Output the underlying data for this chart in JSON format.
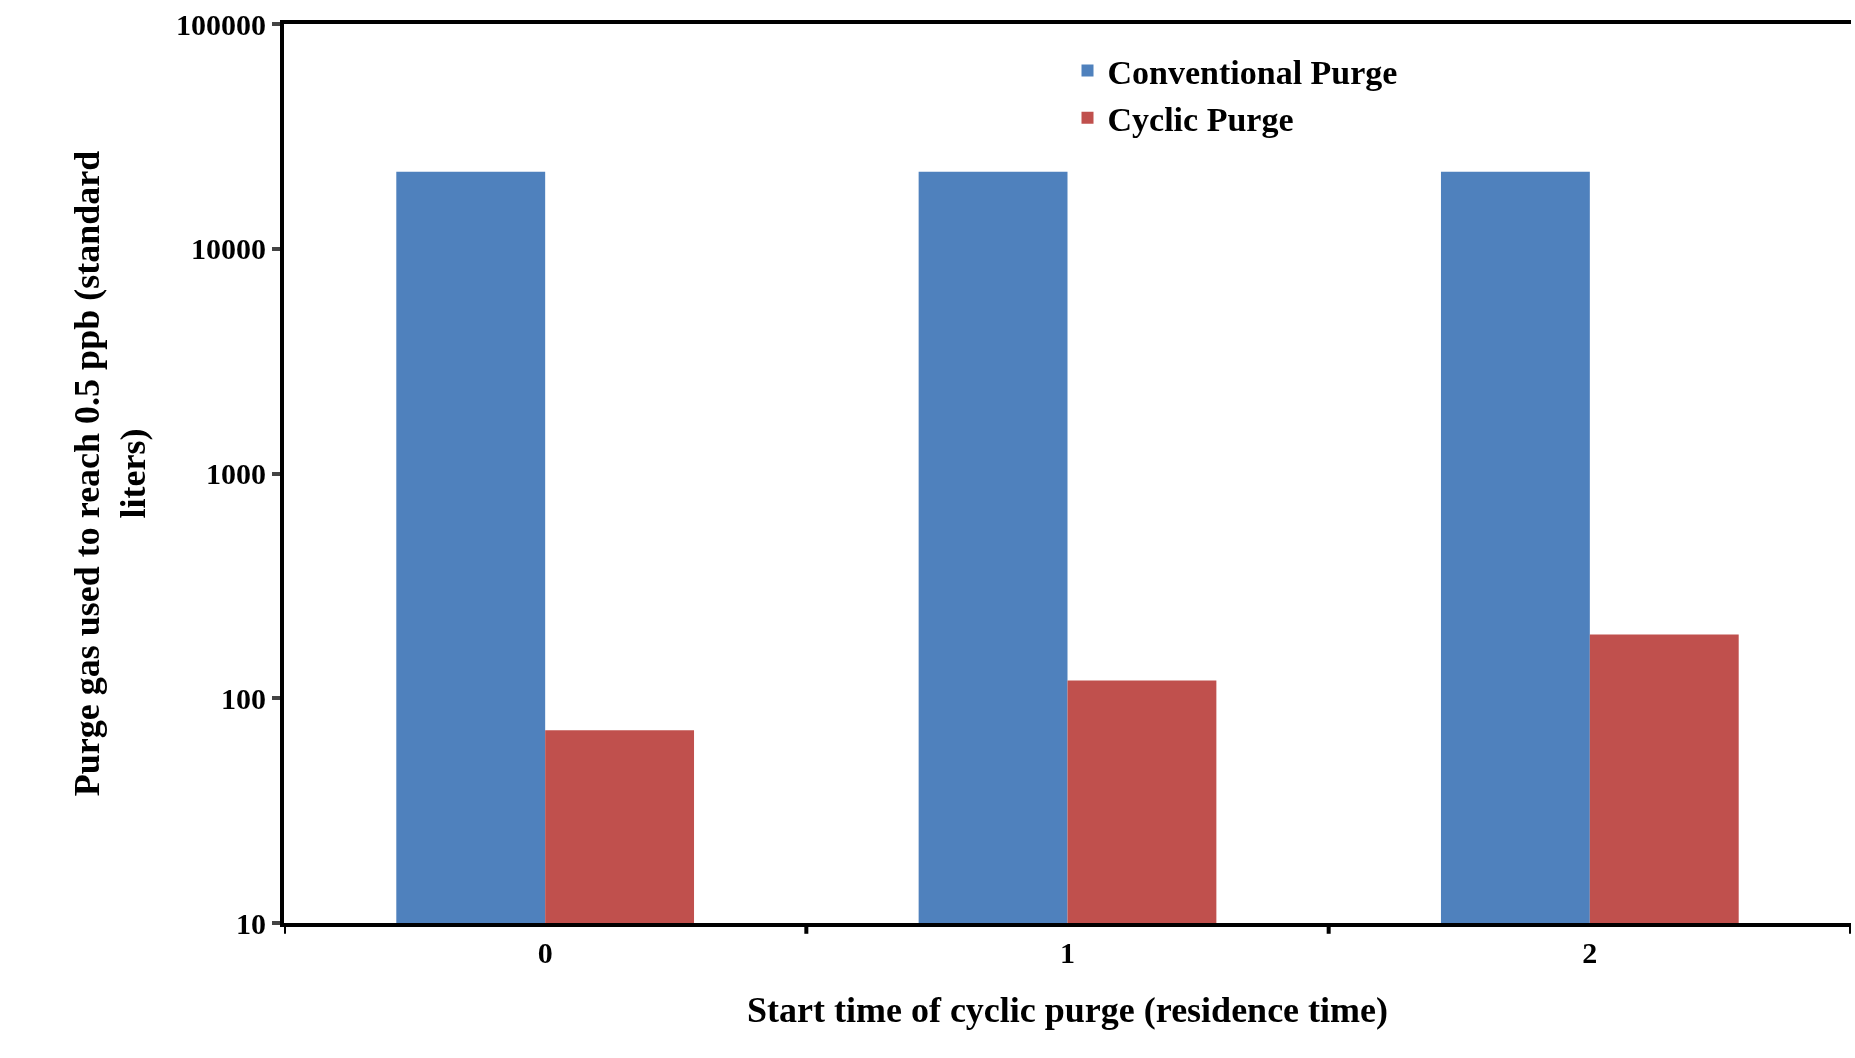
{
  "chart_data": {
    "type": "bar",
    "xlabel": "Start time of cyclic purge (residence time)",
    "ylabel": "Purge gas used to reach 0.5 ppb (standard liters)",
    "categories": [
      "0",
      "1",
      "2"
    ],
    "series": [
      {
        "name": "Conventional Purge",
        "color": "#4f81bd",
        "values": [
          22000,
          22000,
          22000
        ]
      },
      {
        "name": "Cyclic Purge",
        "color": "#c0504d",
        "values": [
          72,
          120,
          192
        ]
      }
    ],
    "log": true,
    "ylim": [
      10,
      100000
    ],
    "yticks": [
      10,
      100,
      1000,
      10000,
      100000
    ],
    "legend": "top"
  }
}
